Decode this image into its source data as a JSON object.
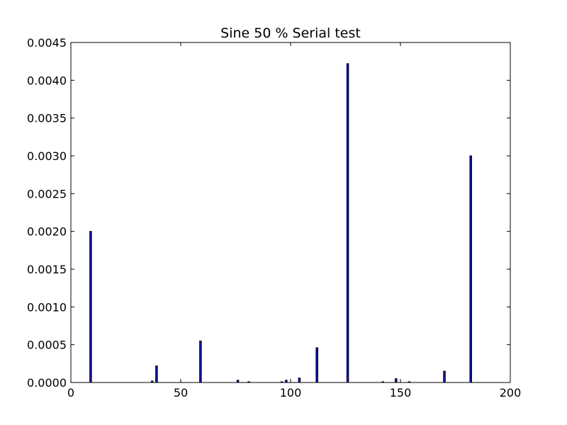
{
  "chart_data": {
    "type": "bar",
    "title": "Sine 50 % Serial test",
    "xlabel": "",
    "ylabel": "",
    "xlim": [
      0,
      200
    ],
    "ylim": [
      0,
      0.0045
    ],
    "x_ticks": [
      0,
      50,
      100,
      150,
      200
    ],
    "x_tick_labels": [
      "0",
      "50",
      "100",
      "150",
      "200"
    ],
    "y_ticks": [
      0.0,
      0.0005,
      0.001,
      0.0015,
      0.002,
      0.0025,
      0.003,
      0.0035,
      0.004,
      0.0045
    ],
    "y_tick_labels": [
      "0.0000",
      "0.0005",
      "0.0010",
      "0.0015",
      "0.0020",
      "0.0025",
      "0.0030",
      "0.0035",
      "0.0040",
      "0.0045"
    ],
    "grid": false,
    "bar_color": "#0000ff",
    "bar_edge_color": "#000000",
    "bar_width": 0.8,
    "x": [
      9,
      37,
      39,
      59,
      76,
      81,
      96,
      98,
      104,
      112,
      126,
      142,
      148,
      154,
      170,
      182
    ],
    "values": [
      0.002,
      2e-05,
      0.00022,
      0.00055,
      3e-05,
      1e-05,
      1e-05,
      3e-05,
      6e-05,
      0.00046,
      0.00422,
      1e-05,
      5e-05,
      1e-05,
      0.00015,
      0.003
    ]
  }
}
